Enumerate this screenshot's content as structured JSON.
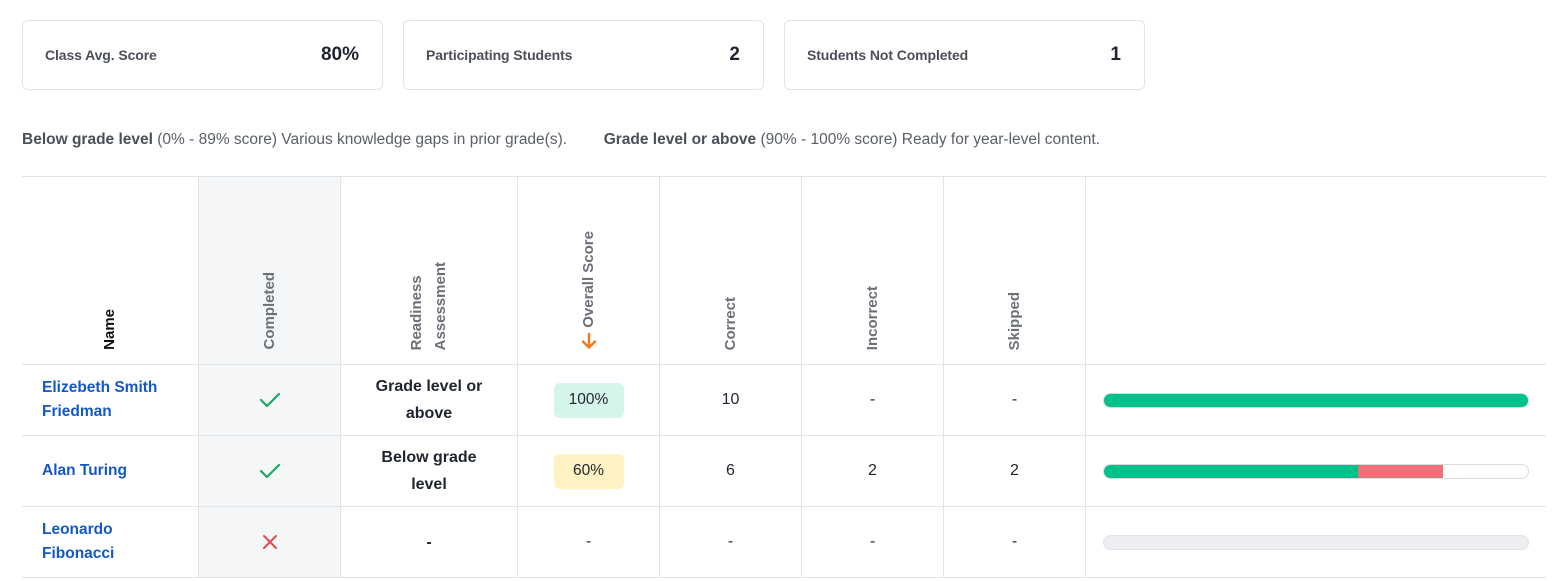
{
  "summary_cards": [
    {
      "label": "Class Avg. Score",
      "value": "80%"
    },
    {
      "label": "Participating Students",
      "value": "2"
    },
    {
      "label": "Students Not Completed",
      "value": "1"
    }
  ],
  "legend": {
    "below_label": "Below grade level",
    "below_text": "(0% - 89% score) Various knowledge gaps in prior grade(s).",
    "above_label": "Grade level or above",
    "above_text": "(90% - 100% score) Ready for year-level content."
  },
  "columns": {
    "name": "Name",
    "completed": "Completed",
    "readiness_line1": "Readiness",
    "readiness_line2": "Assessment",
    "overall_score": "Overall Score",
    "correct": "Correct",
    "incorrect": "Incorrect",
    "skipped": "Skipped"
  },
  "colors": {
    "accent_link": "#1458c6",
    "correct_bar": "#00c08b",
    "incorrect_bar": "#f0707a",
    "check": "#1aa760",
    "cross": "#e5484d",
    "sort_arrow": "#f07b1d"
  },
  "students": [
    {
      "name_line1": "Elizebeth Smith",
      "name_line2": "Friedman",
      "completed": true,
      "completed_icon": "check-icon",
      "readiness_line1": "Grade level or",
      "readiness_line2": "above",
      "score": "100%",
      "score_level": "green",
      "correct": "10",
      "incorrect": "-",
      "skipped": "-",
      "progress": {
        "correct": 10,
        "incorrect": 0,
        "skipped": 0
      }
    },
    {
      "name_line1": "Alan Turing",
      "name_line2": "",
      "completed": true,
      "completed_icon": "check-icon",
      "readiness_line1": "Below grade",
      "readiness_line2": "level",
      "score": "60%",
      "score_level": "yellow",
      "correct": "6",
      "incorrect": "2",
      "skipped": "2",
      "progress": {
        "correct": 6,
        "incorrect": 2,
        "skipped": 2
      }
    },
    {
      "name_line1": "Leonardo",
      "name_line2": "Fibonacci",
      "completed": false,
      "completed_icon": "cross-icon",
      "readiness_line1": "-",
      "readiness_line2": "",
      "score": "-",
      "score_level": "none",
      "correct": "-",
      "incorrect": "-",
      "skipped": "-",
      "progress": null
    }
  ]
}
